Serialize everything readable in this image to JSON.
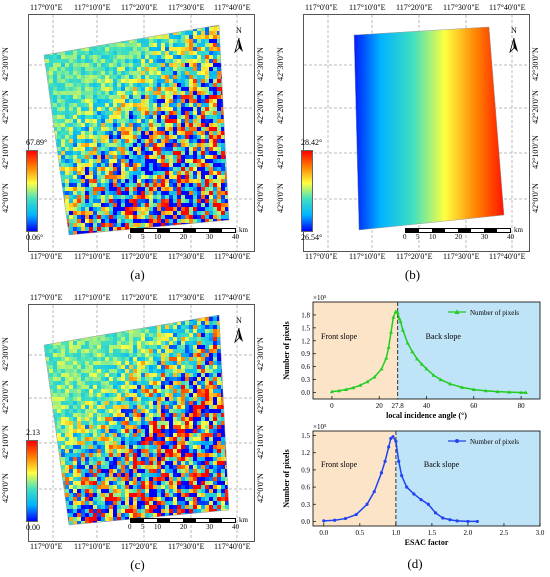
{
  "map_panels": [
    {
      "caption": "(a)",
      "lon_ticks": [
        "117°0'0\"E",
        "117°10'0\"E",
        "117°20'0\"E",
        "117°30'0\"E",
        "117°40'0\"E"
      ],
      "lat_ticks": [
        "42°30'0\"N",
        "42°20'0\"N",
        "42°10'0\"N",
        "42°0'0\"N"
      ],
      "legend_max": "67.89°",
      "legend_min": "0.06°",
      "north": "N",
      "scale_ticks": [
        "0",
        "5",
        "10",
        "20",
        "30",
        "40"
      ],
      "scale_unit": "km",
      "colormap": [
        "#0000ff",
        "#00b4ff",
        "#40e0c0",
        "#ffff40",
        "#ff8000",
        "#ff0000"
      ]
    },
    {
      "caption": "(b)",
      "lon_ticks": [
        "117°0'0\"E",
        "117°10'0\"E",
        "117°20'0\"E",
        "117°30'0\"E",
        "117°40'0\"E"
      ],
      "lat_ticks": [
        "42°30'0\"N",
        "42°20'0\"N",
        "42°10'0\"N",
        "42°0'0\"N"
      ],
      "legend_max": "28.42°",
      "legend_min": "26.54°",
      "north": "N",
      "scale_ticks": [
        "0",
        "5",
        "10",
        "20",
        "30",
        "40"
      ],
      "scale_unit": "km",
      "colormap": [
        "#0000ff",
        "#00b4ff",
        "#40e0c0",
        "#ffff40",
        "#ff8000",
        "#ff0000"
      ]
    },
    {
      "caption": "(c)",
      "lon_ticks": [
        "117°0'0\"E",
        "117°10'0\"E",
        "117°20'0\"E",
        "117°30'0\"E",
        "117°40'0\"E"
      ],
      "lat_ticks": [
        "42°30'0\"N",
        "42°20'0\"N",
        "42°10'0\"N",
        "42°0'0\"N"
      ],
      "legend_max": "2.13",
      "legend_min": "0.00",
      "north": "N",
      "scale_ticks": [
        "0",
        "5",
        "10",
        "20",
        "30",
        "40"
      ],
      "scale_unit": "km",
      "colormap": [
        "#0000ff",
        "#00b4ff",
        "#40e0c0",
        "#ffff40",
        "#ff8000",
        "#ff0000"
      ]
    }
  ],
  "caption_d": "(d)",
  "chart_data": [
    {
      "type": "line",
      "xlabel": "local incidence angle (°)",
      "ylabel": "Number of pixels",
      "y_multiplier": "×10⁵",
      "xlim": [
        -8,
        88
      ],
      "ylim": [
        -0.15,
        2.1
      ],
      "x_ticks": [
        0,
        20,
        40,
        60,
        80
      ],
      "y_ticks": [
        0.0,
        0.3,
        0.6,
        0.9,
        1.2,
        1.5,
        1.8
      ],
      "split_value": 27.8,
      "split_label": "27.8",
      "left_region": "Front slope",
      "right_region": "Back slope",
      "legend": "Number of pixels",
      "series_color": "#22cc22",
      "x": [
        0,
        3,
        6,
        9,
        12,
        15,
        18,
        21,
        23,
        24,
        25,
        26,
        27,
        27.8,
        28.5,
        29,
        30,
        32,
        34,
        36,
        38,
        40,
        43,
        46,
        50,
        55,
        60,
        65,
        70,
        75,
        80,
        82
      ],
      "y": [
        0.02,
        0.04,
        0.07,
        0.11,
        0.17,
        0.25,
        0.36,
        0.55,
        0.8,
        1.05,
        1.4,
        1.75,
        1.88,
        1.86,
        1.72,
        1.65,
        1.45,
        1.15,
        0.95,
        0.78,
        0.66,
        0.55,
        0.4,
        0.3,
        0.2,
        0.12,
        0.07,
        0.04,
        0.02,
        0.01,
        0.0,
        0.0
      ]
    },
    {
      "type": "line",
      "xlabel": "ESAC factor",
      "ylabel": "Number of pixels",
      "y_multiplier": "×10⁵",
      "xlim": [
        -0.15,
        3.0
      ],
      "ylim": [
        -0.08,
        1.58
      ],
      "x_ticks": [
        0.0,
        0.5,
        1.0,
        1.5,
        2.0,
        2.5,
        3.0
      ],
      "y_ticks": [
        0.0,
        0.3,
        0.6,
        0.9,
        1.2,
        1.5
      ],
      "split_value": 1.0,
      "left_region": "Front slope",
      "right_region": "Back slope",
      "legend": "Number of pixels",
      "series_color": "#2244ee",
      "x": [
        0.0,
        0.15,
        0.3,
        0.45,
        0.6,
        0.7,
        0.8,
        0.85,
        0.9,
        0.93,
        0.96,
        1.0,
        1.04,
        1.08,
        1.15,
        1.25,
        1.35,
        1.45,
        1.55,
        1.65,
        1.75,
        1.85,
        2.0,
        2.13
      ],
      "y": [
        0.01,
        0.02,
        0.05,
        0.12,
        0.3,
        0.52,
        0.85,
        1.05,
        1.3,
        1.45,
        1.48,
        1.4,
        1.05,
        0.8,
        0.6,
        0.48,
        0.38,
        0.3,
        0.15,
        0.06,
        0.03,
        0.01,
        0.0,
        0.0
      ]
    }
  ]
}
